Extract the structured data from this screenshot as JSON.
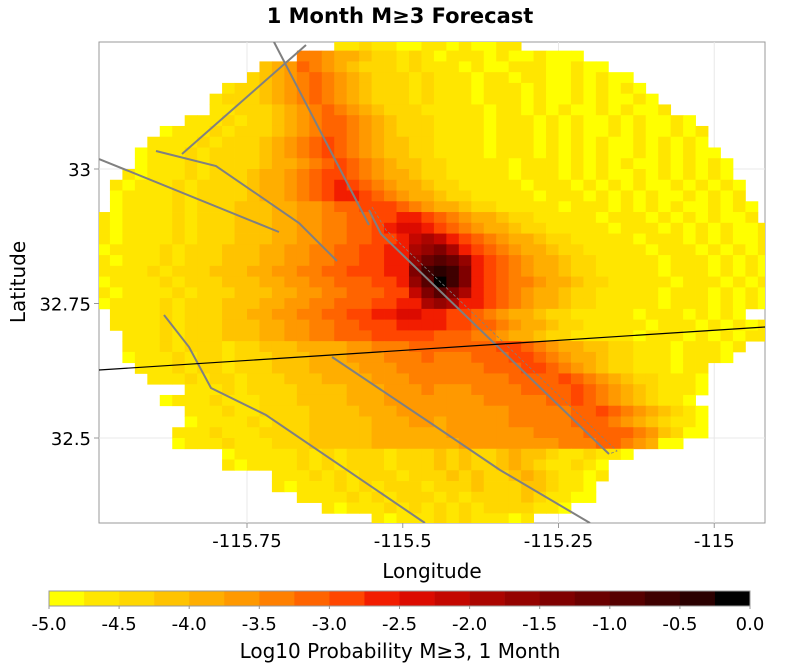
{
  "chart_data": {
    "type": "heatmap",
    "title": "1 Month M≥3 Forecast",
    "xlabel": "Longitude",
    "ylabel": "Latitude",
    "xlim": [
      -115.99,
      -114.92
    ],
    "ylim": [
      32.34,
      33.235
    ],
    "grid": true,
    "x_ticks": [
      -115.75,
      -115.5,
      -115.25,
      -115
    ],
    "x_tick_labels": [
      "-115.75",
      "-115.5",
      "-115.25",
      "-115"
    ],
    "y_ticks": [
      33,
      32.75,
      32.5
    ],
    "y_tick_labels": [
      "33",
      "32.75",
      "32.5"
    ],
    "cell_size_deg": 0.02,
    "grid_origin": {
      "lon": -115.99,
      "lat": 33.24
    },
    "level_encoding": "0-9,A-J = colour bin index (bin k spans -5.0+0.25k to -4.75+0.25k); '.' = no value",
    "rows": [
      "...................112110011010011....................",
      "................66544322121011101001000...............",
      ".............3457654322212111010011100100.............",
      "............2345676543222121110110110010100...........",
      "..........1223456765432221211101110100101010..........",
      ".........122234567654322212111011101001010010.........",
      ".........1122234567654322211111011010100101001........",
      ".......11121223456776543222111101110101001010010......",
      ".....01112122234567765432221111011101010010100101.....",
      "....111121222345678765433221111011101010100101010.....",
      "...01112122223456787654332211110111010101001010100....",
      "...011121222234456787654332211111011101010100101010...",
      "..1011121222344567887654432211111011101010010101010...",
      ".101112122223445678987654432211111011101010100101010..",
      ".011112122223445678998765443221111101110101010010101..",
      ".0111121222333445567788876544322111110111010101001010.",
      "10111121222333445566778899876544322111110111010101001.",
      "101111212223334455667789AA9876544322111110111010101001",
      "1011112122233344556677889BCB98765443221111101110101001",
      "0111121222333445566778899CDEC9876544322111110111010101",
      "1011121222333445566778899DFGFD987654432211111011101010",
      "1111212223334455667788899EHIHE987654432211111011101010",
      "0111121222333445566777889DGJHE987665443221111101110101",
      "1011112122233344556677788BEGEC987654432211111011101010",
      "01111212223334455667778899CDC9987654432211111011101010",
      ".11112122233445566778899AA99887654432211111011101010",
      ".11112122233344556677888999988776544322111110111010101",
      "..1112122233344556677788888777665443221111101110101011",
      "..11121222122333444455666777777788765443322111011101.",
      "..0111212212223334445556667666777887654432211101110..",
      "...1112122122233344445556666666777887654322111011....",
      "....111212212223334444555666666667777876543221110....",
      ".......111212222333344455565556666777787654321110.....",
      ".....0111211122233334445555555566666778765432110......",
      ".......111211222233334445555555556666677876543210.....",
      ".......011112122233333444554555556666677765432110.....",
      "......1112111222233333444444555555566667777653200......",
      "......01112111222333334444444555555556667765400.......",
      "..........011111212122212223232234332112110...........",
      "..........1011112121222122232322343211210.............",
      "..............111212122212223232234321101.............",
      "..............10111212122212223222332110..............",
      "................111121212221212222321100..............",
      "..................10111212121212222110................",
      "......................1011121211101..................."
    ],
    "colorbar": {
      "label": "Log10 Probability M≥3, 1 Month",
      "min": -5.0,
      "max": 0.0,
      "tick_labels": [
        "-5.0",
        "-4.5",
        "-4.0",
        "-3.5",
        "-3.0",
        "-2.5",
        "-2.0",
        "-1.5",
        "-1.0",
        "-0.5",
        "0.0"
      ],
      "colors": [
        "#ffff00",
        "#ffe600",
        "#ffd700",
        "#ffc300",
        "#ffae00",
        "#ff9900",
        "#ff8000",
        "#ff6400",
        "#ff4600",
        "#f21d00",
        "#dc0b00",
        "#c40700",
        "#ab0500",
        "#950300",
        "#7f0000",
        "#6a0000",
        "#560000",
        "#3f0000",
        "#2b0000",
        "#000000"
      ]
    },
    "overlay_colors": {
      "faults": "#808080",
      "boundary": "#000000"
    }
  }
}
